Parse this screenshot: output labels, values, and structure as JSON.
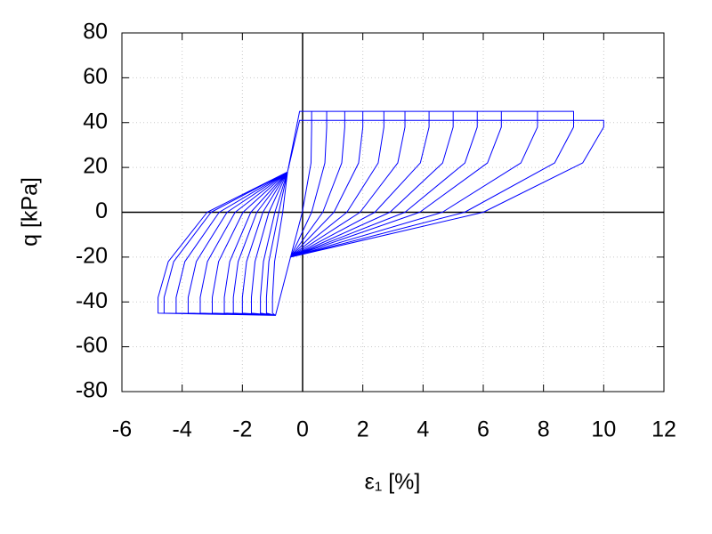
{
  "chart_data": {
    "type": "line",
    "xlabel": "ε₁ [%]",
    "ylabel": "q [kPa]",
    "xlim": [
      -6,
      12
    ],
    "xticks": [
      -6,
      -4,
      -2,
      0,
      2,
      4,
      6,
      8,
      10,
      12
    ],
    "ylim": [
      -80,
      80
    ],
    "yticks": [
      -80,
      -60,
      -40,
      -20,
      0,
      20,
      40,
      60,
      80
    ],
    "grid": true,
    "zeroaxis": true,
    "x": [
      -0.1,
      0.3,
      0.3,
      0.28,
      -0.01,
      -0.4,
      -0.9,
      -1.0,
      -1.0,
      -0.93,
      -0.66,
      -0.5,
      -0.1,
      0.8,
      0.8,
      0.74,
      0.3,
      -0.4,
      -0.9,
      -1.2,
      -1.2,
      -1.12,
      -0.79,
      -0.5,
      -0.1,
      1.4,
      1.4,
      1.3,
      0.67,
      -0.4,
      -0.9,
      -1.4,
      -1.4,
      -1.3,
      -0.92,
      -0.5,
      -0.1,
      2.0,
      2.0,
      1.86,
      1.04,
      -0.4,
      -0.9,
      -1.7,
      -1.7,
      -1.58,
      -1.12,
      -0.5,
      -0.1,
      2.7,
      2.7,
      2.51,
      1.47,
      -0.4,
      -0.9,
      -2.0,
      -2.0,
      -1.86,
      -1.32,
      -0.5,
      -0.1,
      3.4,
      3.4,
      3.16,
      1.91,
      -0.4,
      -0.9,
      -2.3,
      -2.3,
      -2.14,
      -1.52,
      -0.5,
      -0.1,
      4.2,
      4.2,
      3.91,
      2.4,
      -0.4,
      -0.9,
      -2.6,
      -2.6,
      -2.42,
      -1.72,
      -0.5,
      -0.1,
      5.0,
      5.0,
      4.65,
      2.9,
      -0.4,
      -0.9,
      -3.0,
      -3.0,
      -2.79,
      -1.98,
      -0.5,
      -0.1,
      5.8,
      5.8,
      5.39,
      3.4,
      -0.4,
      -0.9,
      -3.4,
      -3.4,
      -3.16,
      -2.24,
      -0.5,
      -0.1,
      6.6,
      6.6,
      6.14,
      3.89,
      -0.4,
      -0.9,
      -3.8,
      -3.8,
      -3.53,
      -2.51,
      -0.5,
      -0.1,
      7.8,
      7.8,
      7.25,
      4.64,
      -0.4,
      -0.9,
      -4.2,
      -4.2,
      -3.91,
      -2.77,
      -0.5,
      -0.1,
      9.0,
      9.0,
      8.37,
      5.38,
      -0.4,
      -0.9,
      -4.6,
      -4.6,
      -4.28,
      -3.04,
      -0.5,
      -0.1,
      10.0,
      10.0,
      9.3,
      6.0,
      -0.4,
      -0.9,
      -4.8,
      -4.8,
      -4.46,
      -3.17,
      -0.5
    ],
    "series": [
      {
        "color": "#0000ff",
        "values": [
          45,
          45,
          38,
          22,
          0,
          -20,
          -46,
          -45,
          -38,
          -22,
          0,
          18,
          45,
          45,
          38,
          22,
          0,
          -20,
          -46,
          -45,
          -38,
          -22,
          0,
          18,
          45,
          45,
          38,
          22,
          0,
          -20,
          -46,
          -45,
          -38,
          -22,
          0,
          18,
          45,
          45,
          38,
          22,
          0,
          -20,
          -46,
          -45,
          -38,
          -22,
          0,
          18,
          45,
          45,
          38,
          22,
          0,
          -20,
          -46,
          -45,
          -38,
          -22,
          0,
          18,
          45,
          45,
          38,
          22,
          0,
          -20,
          -46,
          -45,
          -38,
          -22,
          0,
          18,
          45,
          45,
          38,
          22,
          0,
          -20,
          -46,
          -45,
          -38,
          -22,
          0,
          18,
          45,
          45,
          38,
          22,
          0,
          -20,
          -46,
          -45,
          -38,
          -22,
          0,
          18,
          45,
          45,
          38,
          22,
          0,
          -20,
          -46,
          -45,
          -38,
          -22,
          0,
          18,
          45,
          45,
          38,
          22,
          0,
          -20,
          -46,
          -45,
          -38,
          -22,
          0,
          18,
          45,
          45,
          38,
          22,
          0,
          -20,
          -46,
          -45,
          -38,
          -22,
          0,
          18,
          45,
          45,
          38,
          22,
          0,
          -20,
          -46,
          -45,
          -38,
          -22,
          0,
          18,
          41,
          41,
          38,
          22,
          0,
          -20,
          -46,
          -45,
          -38,
          -22,
          0,
          18
        ]
      }
    ]
  }
}
